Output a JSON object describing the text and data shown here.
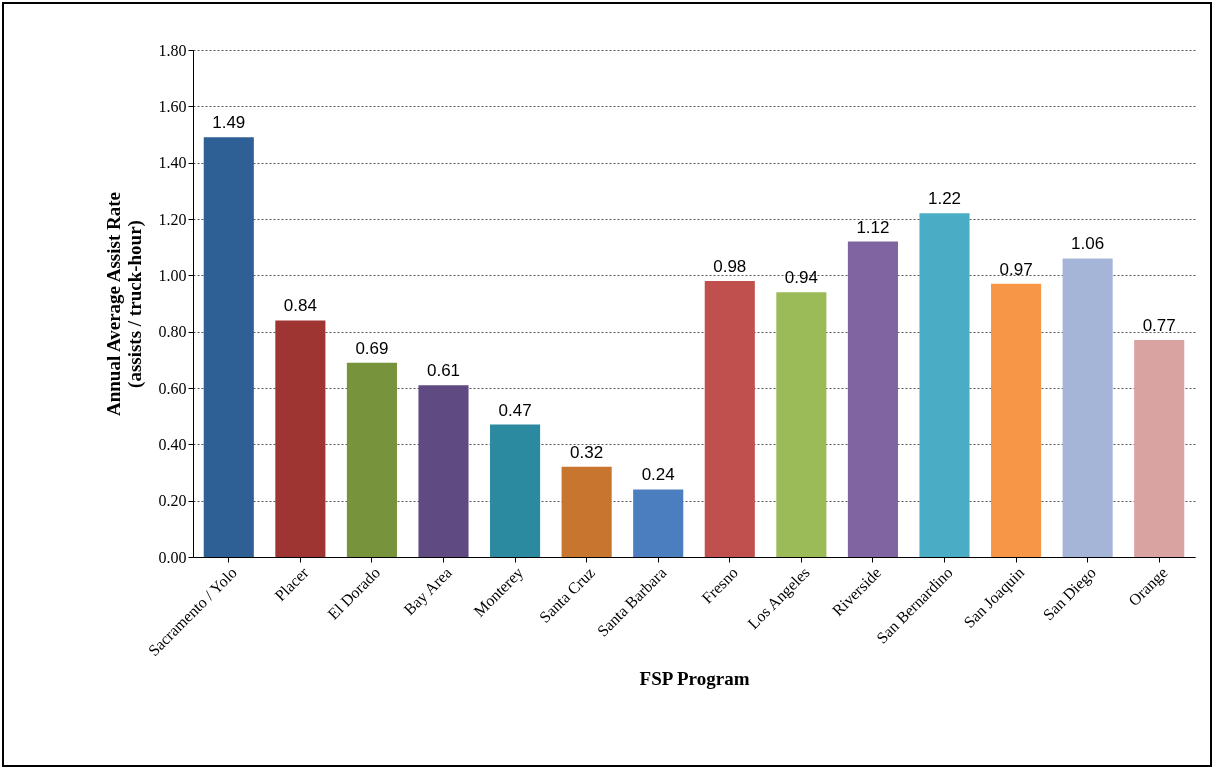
{
  "chart_data": {
    "type": "bar",
    "xlabel": "FSP Program",
    "ylabel": "Annual Average Assist Rate (assists / truck-hour)",
    "categories": [
      "Sacramento / Yolo",
      "Placer",
      "El Dorado",
      "Bay Area",
      "Monterey",
      "Santa Cruz",
      "Santa Barbara",
      "Fresno",
      "Los Angeles",
      "Riverside",
      "San Bernardino",
      "San Joaquin",
      "San Diego",
      "Orange"
    ],
    "values": [
      1.49,
      0.84,
      0.69,
      0.61,
      0.47,
      0.32,
      0.24,
      0.98,
      0.94,
      1.12,
      1.22,
      0.97,
      1.06,
      0.77
    ],
    "colors": [
      "#2e5f95",
      "#9e3532",
      "#77933c",
      "#5f4a82",
      "#2b8aa0",
      "#c87530",
      "#4a7ebf",
      "#c0504d",
      "#9bbb59",
      "#8064a2",
      "#4bacc6",
      "#f79646",
      "#a5b5d8",
      "#d9a3a2"
    ],
    "ylim": [
      0,
      1.8
    ],
    "yticks": [
      {
        "value": 0,
        "label": "0.00"
      },
      {
        "value": 0.2,
        "label": "0.20"
      },
      {
        "value": 0.4,
        "label": "0.40"
      },
      {
        "value": 0.6,
        "label": "0.60"
      },
      {
        "value": 0.8,
        "label": "0.80"
      },
      {
        "value": 1,
        "label": "1.00"
      },
      {
        "value": 1.2,
        "label": "1.20"
      },
      {
        "value": 1.4,
        "label": "1.40"
      },
      {
        "value": 1.6,
        "label": "1.60"
      },
      {
        "value": 1.8,
        "label": "1.80"
      }
    ],
    "grid": "y",
    "data_labels": true
  }
}
